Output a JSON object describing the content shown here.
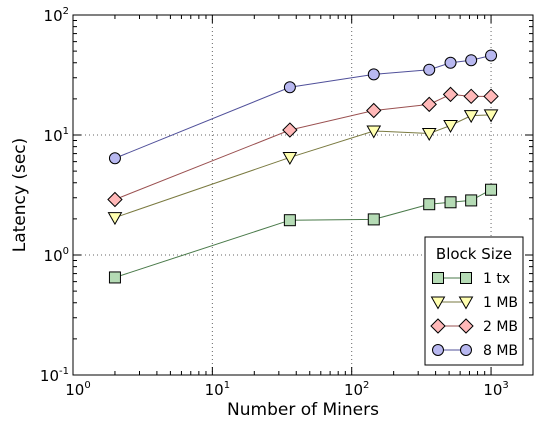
{
  "chart_data": {
    "type": "line",
    "title": "",
    "xlabel": "Number of Miners",
    "ylabel": "Latency (sec)",
    "xscale": "log",
    "yscale": "log",
    "xlim": [
      1,
      2000
    ],
    "ylim": [
      0.1,
      100
    ],
    "grid": true,
    "x_ticks": [
      {
        "value": 1,
        "base": "10",
        "exp": "0"
      },
      {
        "value": 10,
        "base": "10",
        "exp": "1"
      },
      {
        "value": 100,
        "base": "10",
        "exp": "2"
      },
      {
        "value": 1000,
        "base": "10",
        "exp": "3"
      }
    ],
    "y_ticks": [
      {
        "value": 0.1,
        "base": "10",
        "exp": "-1"
      },
      {
        "value": 1,
        "base": "10",
        "exp": "0"
      },
      {
        "value": 10,
        "base": "10",
        "exp": "1"
      },
      {
        "value": 100,
        "base": "10",
        "exp": "2"
      }
    ],
    "legend": {
      "title": "Block Size",
      "position": "lower-right"
    },
    "series": [
      {
        "name": "1 tx",
        "marker": "square",
        "fill": "#b5dbb5",
        "line": "#4a7a4a",
        "x": [
          2,
          36,
          144,
          360,
          512,
          720,
          1000
        ],
        "y": [
          0.65,
          1.95,
          1.98,
          2.65,
          2.75,
          2.85,
          3.5
        ]
      },
      {
        "name": "1 MB",
        "marker": "triangle-down",
        "fill": "#ffffb0",
        "line": "#7a7a40",
        "x": [
          2,
          36,
          144,
          360,
          512,
          720,
          1000
        ],
        "y": [
          2.05,
          6.5,
          10.8,
          10.3,
          12.0,
          14.5,
          14.7
        ]
      },
      {
        "name": "2 MB",
        "marker": "diamond",
        "fill": "#ffb8b8",
        "line": "#9a5050",
        "x": [
          2,
          36,
          144,
          360,
          512,
          720,
          1000
        ],
        "y": [
          2.9,
          11.0,
          16.0,
          18.0,
          21.8,
          21.0,
          21.0
        ]
      },
      {
        "name": "8 MB",
        "marker": "circle",
        "fill": "#b8b8f0",
        "line": "#50509a",
        "x": [
          2,
          36,
          144,
          360,
          512,
          720,
          1000
        ],
        "y": [
          6.4,
          25.0,
          32.0,
          35.0,
          40.0,
          42.0,
          46.0
        ]
      }
    ]
  }
}
